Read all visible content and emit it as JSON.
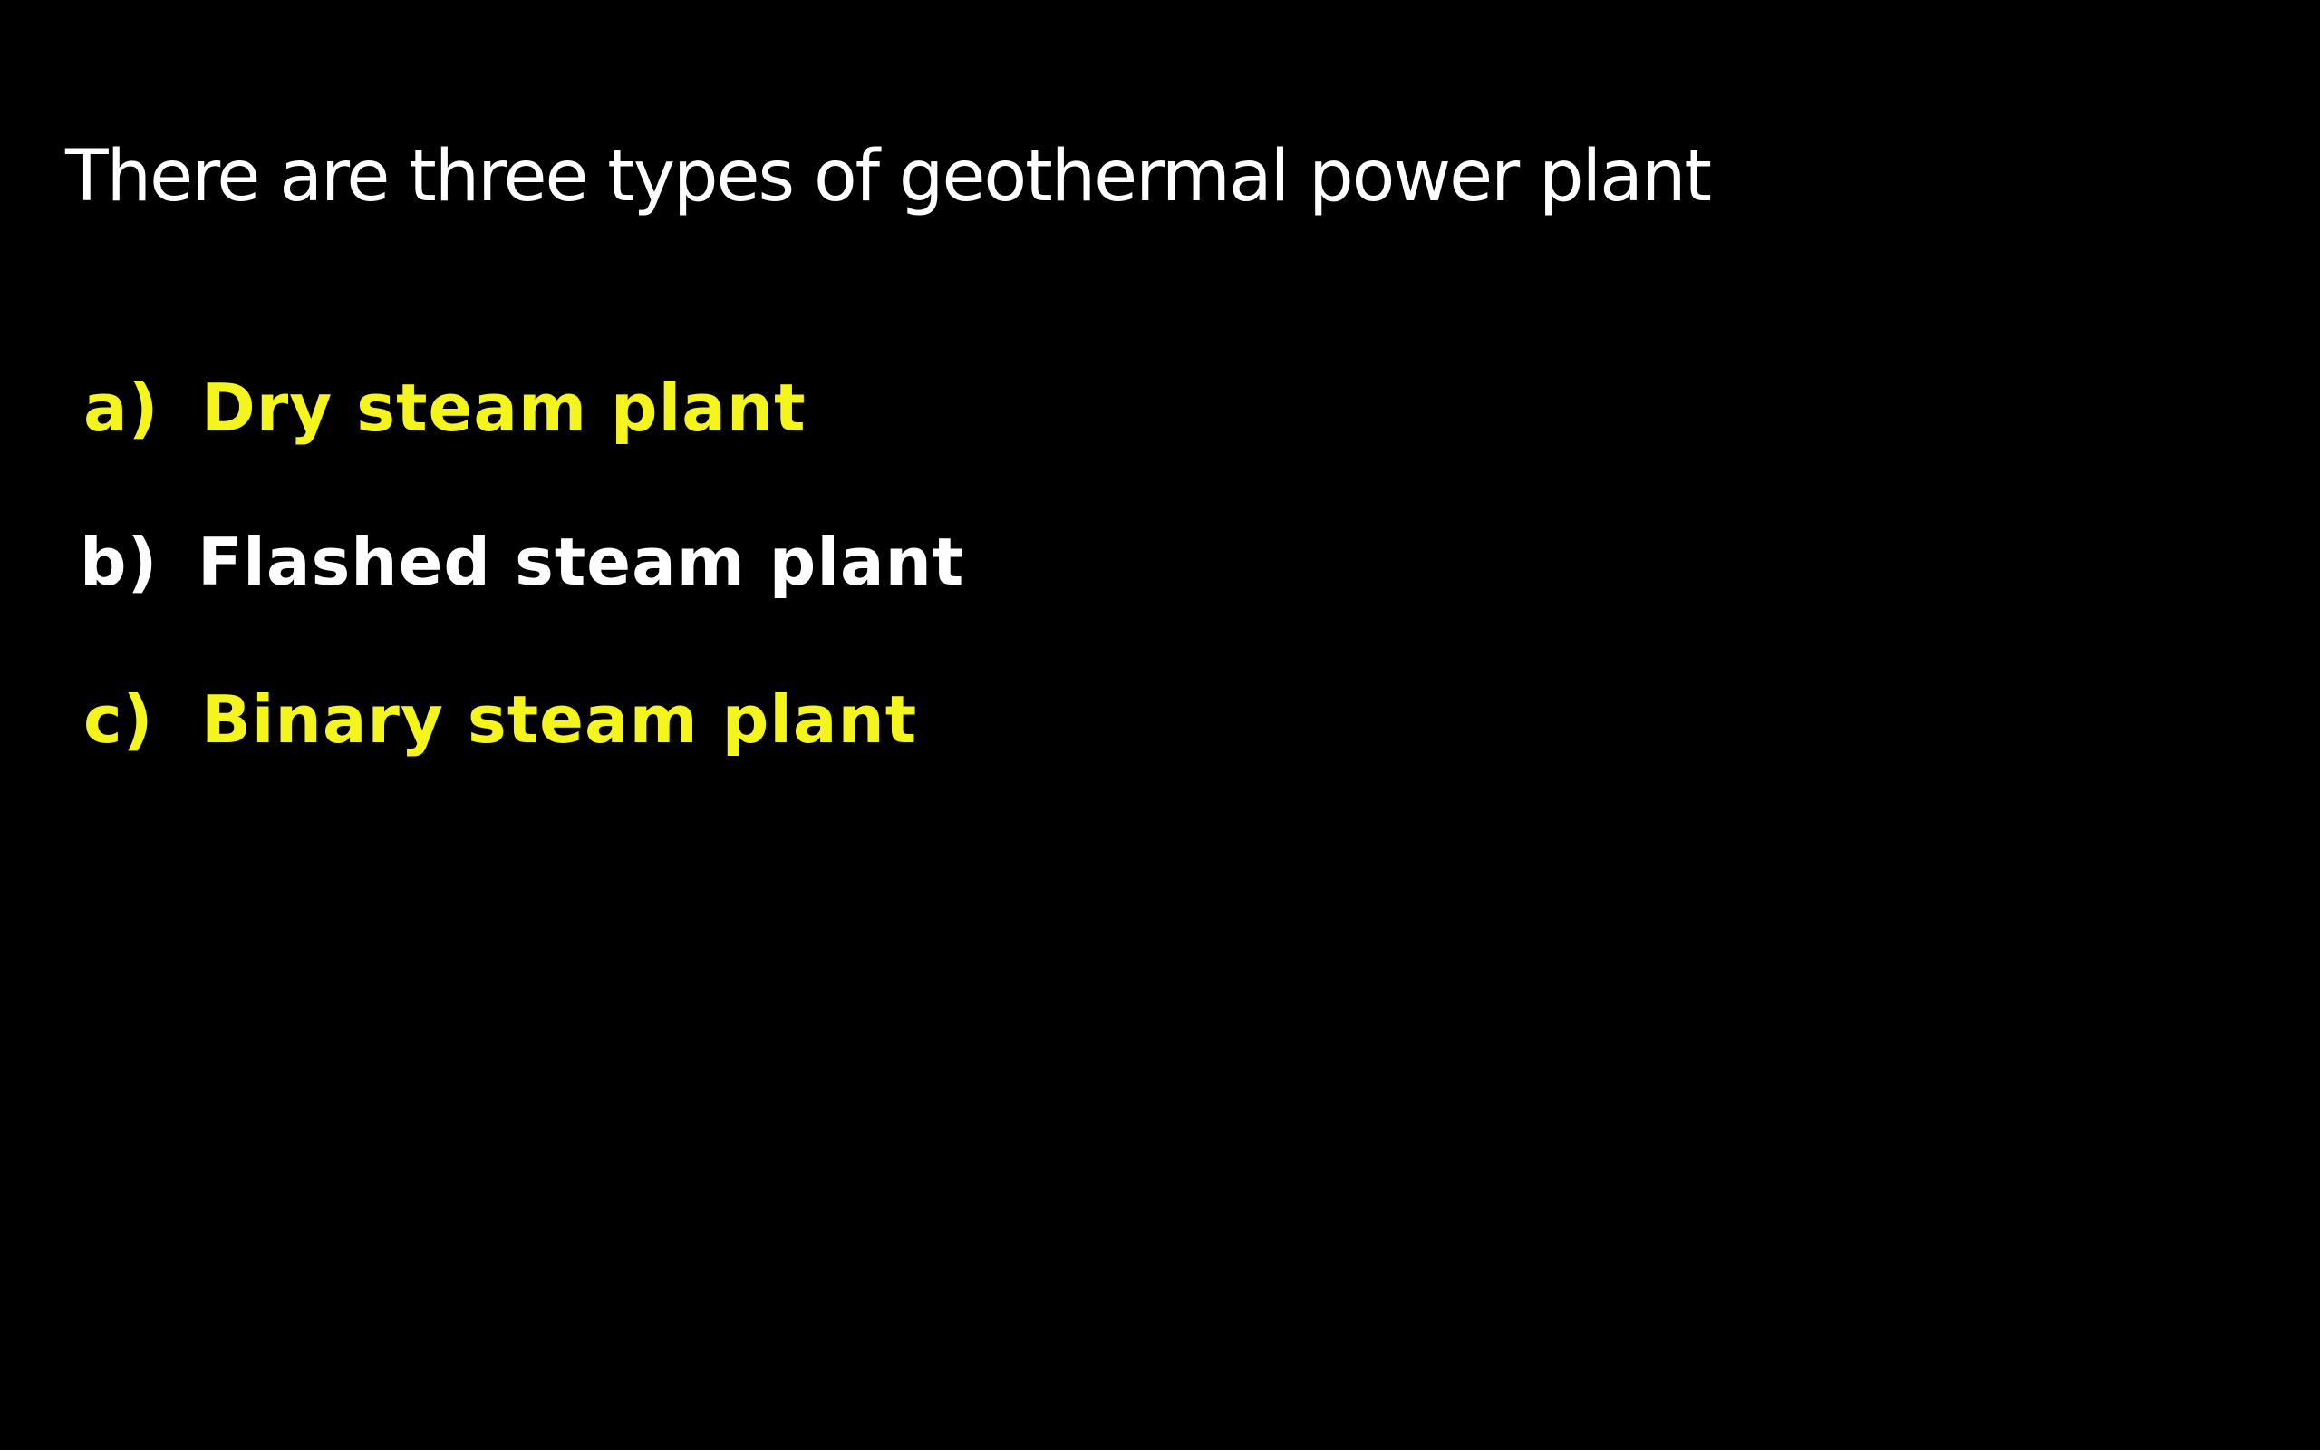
{
  "title": "There are three types of geothermal power plant",
  "items": [
    {
      "marker": "a)",
      "label": "Dry steam plant",
      "color": "#f5f51e"
    },
    {
      "marker": "b)",
      "label": "Flashed steam plant",
      "color": "#ffffff"
    },
    {
      "marker": "c)",
      "label": "Binary steam plant",
      "color": "#f5f51e"
    }
  ],
  "colors": {
    "background": "#000000",
    "title": "#ffffff",
    "highlight": "#f5f51e"
  }
}
